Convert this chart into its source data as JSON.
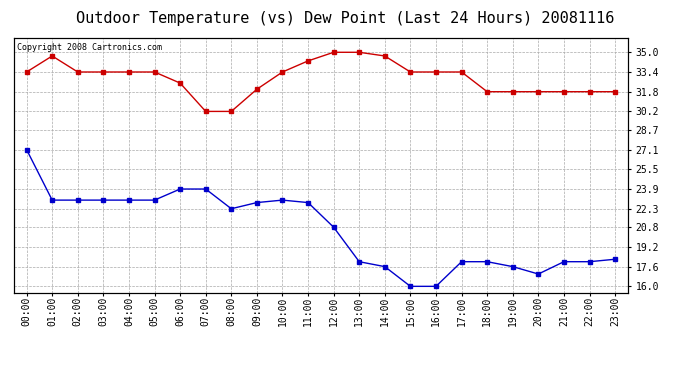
{
  "title": "Outdoor Temperature (vs) Dew Point (Last 24 Hours) 20081116",
  "copyright_text": "Copyright 2008 Cartronics.com",
  "x_labels": [
    "00:00",
    "01:00",
    "02:00",
    "03:00",
    "04:00",
    "05:00",
    "06:00",
    "07:00",
    "08:00",
    "09:00",
    "10:00",
    "11:00",
    "12:00",
    "13:00",
    "14:00",
    "15:00",
    "16:00",
    "17:00",
    "18:00",
    "19:00",
    "20:00",
    "21:00",
    "22:00",
    "23:00"
  ],
  "temp_data": [
    33.4,
    34.7,
    33.4,
    33.4,
    33.4,
    33.4,
    32.5,
    30.2,
    30.2,
    32.0,
    33.4,
    34.3,
    35.0,
    35.0,
    34.7,
    33.4,
    33.4,
    33.4,
    31.8,
    31.8,
    31.8,
    31.8,
    31.8,
    31.8
  ],
  "dew_data": [
    27.1,
    23.0,
    23.0,
    23.0,
    23.0,
    23.0,
    23.9,
    23.9,
    22.3,
    22.8,
    23.0,
    22.8,
    20.8,
    18.0,
    17.6,
    16.0,
    16.0,
    18.0,
    18.0,
    17.6,
    17.0,
    18.0,
    18.0,
    18.2
  ],
  "temp_color": "#cc0000",
  "dew_color": "#0000cc",
  "ylim": [
    15.5,
    36.2
  ],
  "y_ticks_right": [
    16.0,
    17.6,
    19.2,
    20.8,
    22.3,
    23.9,
    25.5,
    27.1,
    28.7,
    30.2,
    31.8,
    33.4,
    35.0
  ],
  "background_color": "#ffffff",
  "grid_color": "#aaaaaa",
  "title_fontsize": 11,
  "marker": "s",
  "marker_size": 3,
  "linewidth": 1.0
}
